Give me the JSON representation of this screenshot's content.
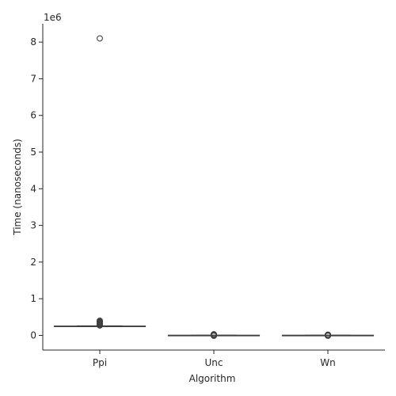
{
  "chart_data": {
    "type": "box",
    "xlabel": "Algorithm",
    "ylabel": "Time (nanoseconds)",
    "y_multiplier_label": "1e6",
    "ylim": [
      -400000,
      8500000
    ],
    "yticks": [
      0,
      1000000,
      2000000,
      3000000,
      4000000,
      5000000,
      6000000,
      7000000,
      8000000
    ],
    "ytick_labels": [
      "0",
      "1",
      "2",
      "3",
      "4",
      "5",
      "6",
      "7",
      "8"
    ],
    "grid": false,
    "categories": [
      "Ppi",
      "Unc",
      "Wn"
    ],
    "boxes": [
      {
        "category": "Ppi",
        "whisker_low": 240000,
        "q1": 245000,
        "median": 250000,
        "q3": 255000,
        "whisker_high": 262000,
        "outliers": [
          8100000,
          400000,
          380000,
          360000,
          340000,
          320000,
          300000,
          280000,
          270000
        ]
      },
      {
        "category": "Unc",
        "whisker_low": 1000,
        "q1": 2000,
        "median": 3000,
        "q3": 4000,
        "whisker_high": 6000,
        "outliers": [
          30000,
          25000,
          20000,
          15000,
          10000,
          -5000,
          -10000
        ]
      },
      {
        "category": "Wn",
        "whisker_low": 1000,
        "q1": 2000,
        "median": 3000,
        "q3": 4000,
        "whisker_high": 6000,
        "outliers": [
          20000,
          15000,
          10000,
          -5000,
          -10000
        ]
      }
    ]
  }
}
